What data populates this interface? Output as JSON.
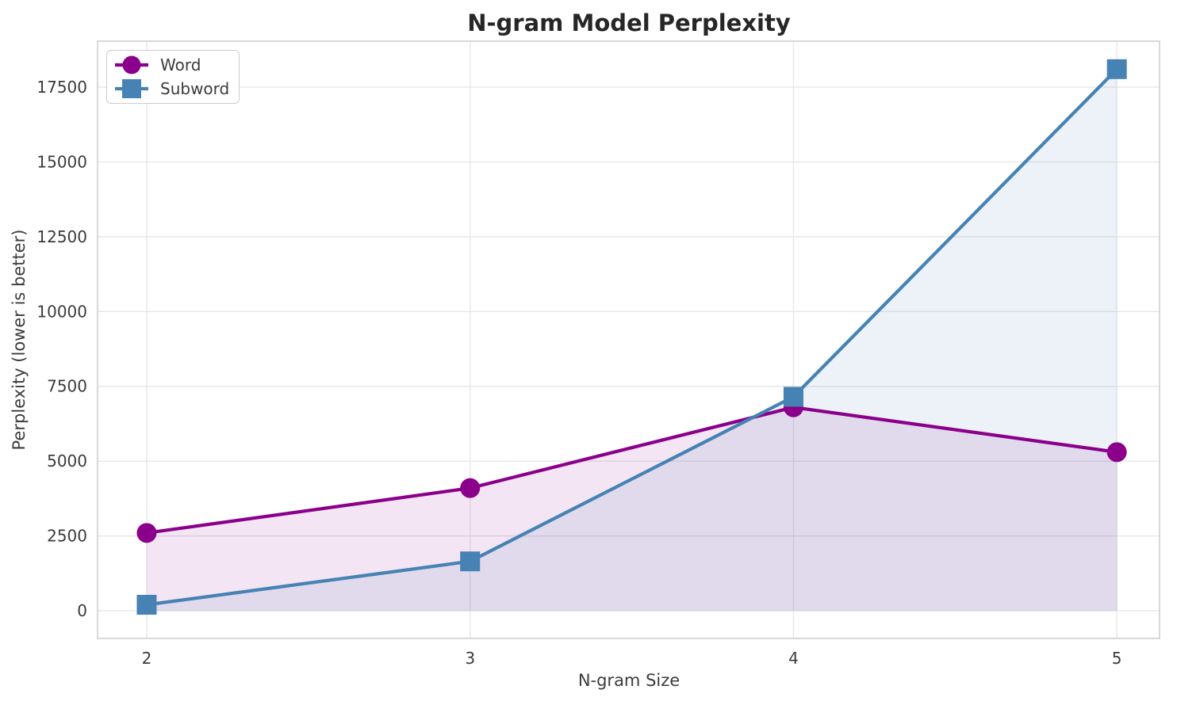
{
  "chart_data": {
    "type": "line",
    "title": "N-gram Model Perplexity",
    "xlabel": "N-gram Size",
    "ylabel": "Perplexity (lower is better)",
    "x": [
      2,
      3,
      4,
      5
    ],
    "x_tick_labels": [
      "2",
      "3",
      "4",
      "5"
    ],
    "y_ticks": [
      0,
      2500,
      5000,
      7500,
      10000,
      12500,
      15000,
      17500
    ],
    "y_tick_labels": [
      "0",
      "2500",
      "5000",
      "7500",
      "10000",
      "12500",
      "15000",
      "17500"
    ],
    "xlim": [
      1.848,
      5.132
    ],
    "ylim": [
      -925,
      19035
    ],
    "grid": "on",
    "legend_position": "upper left",
    "area_fill_baseline": 0,
    "series": [
      {
        "name": "Word",
        "color": "#8B008B",
        "marker": "circle",
        "line_width": 4.2,
        "fill_opacity": 0.1,
        "values": [
          2600,
          4100,
          6800,
          5300
        ]
      },
      {
        "name": "Subword",
        "color": "#4682B4",
        "marker": "square",
        "line_width": 4.2,
        "fill_opacity": 0.1,
        "values": [
          200,
          1650,
          7150,
          18100
        ]
      }
    ]
  },
  "style": {
    "background": "#ffffff",
    "grid_color": "#e7e7e7",
    "spine_color": "#cccccc",
    "tick_text_color": "#3b3b3b",
    "title_color": "#262626",
    "legend_border_color": "#cccccc",
    "legend_background": "#ffffff"
  }
}
